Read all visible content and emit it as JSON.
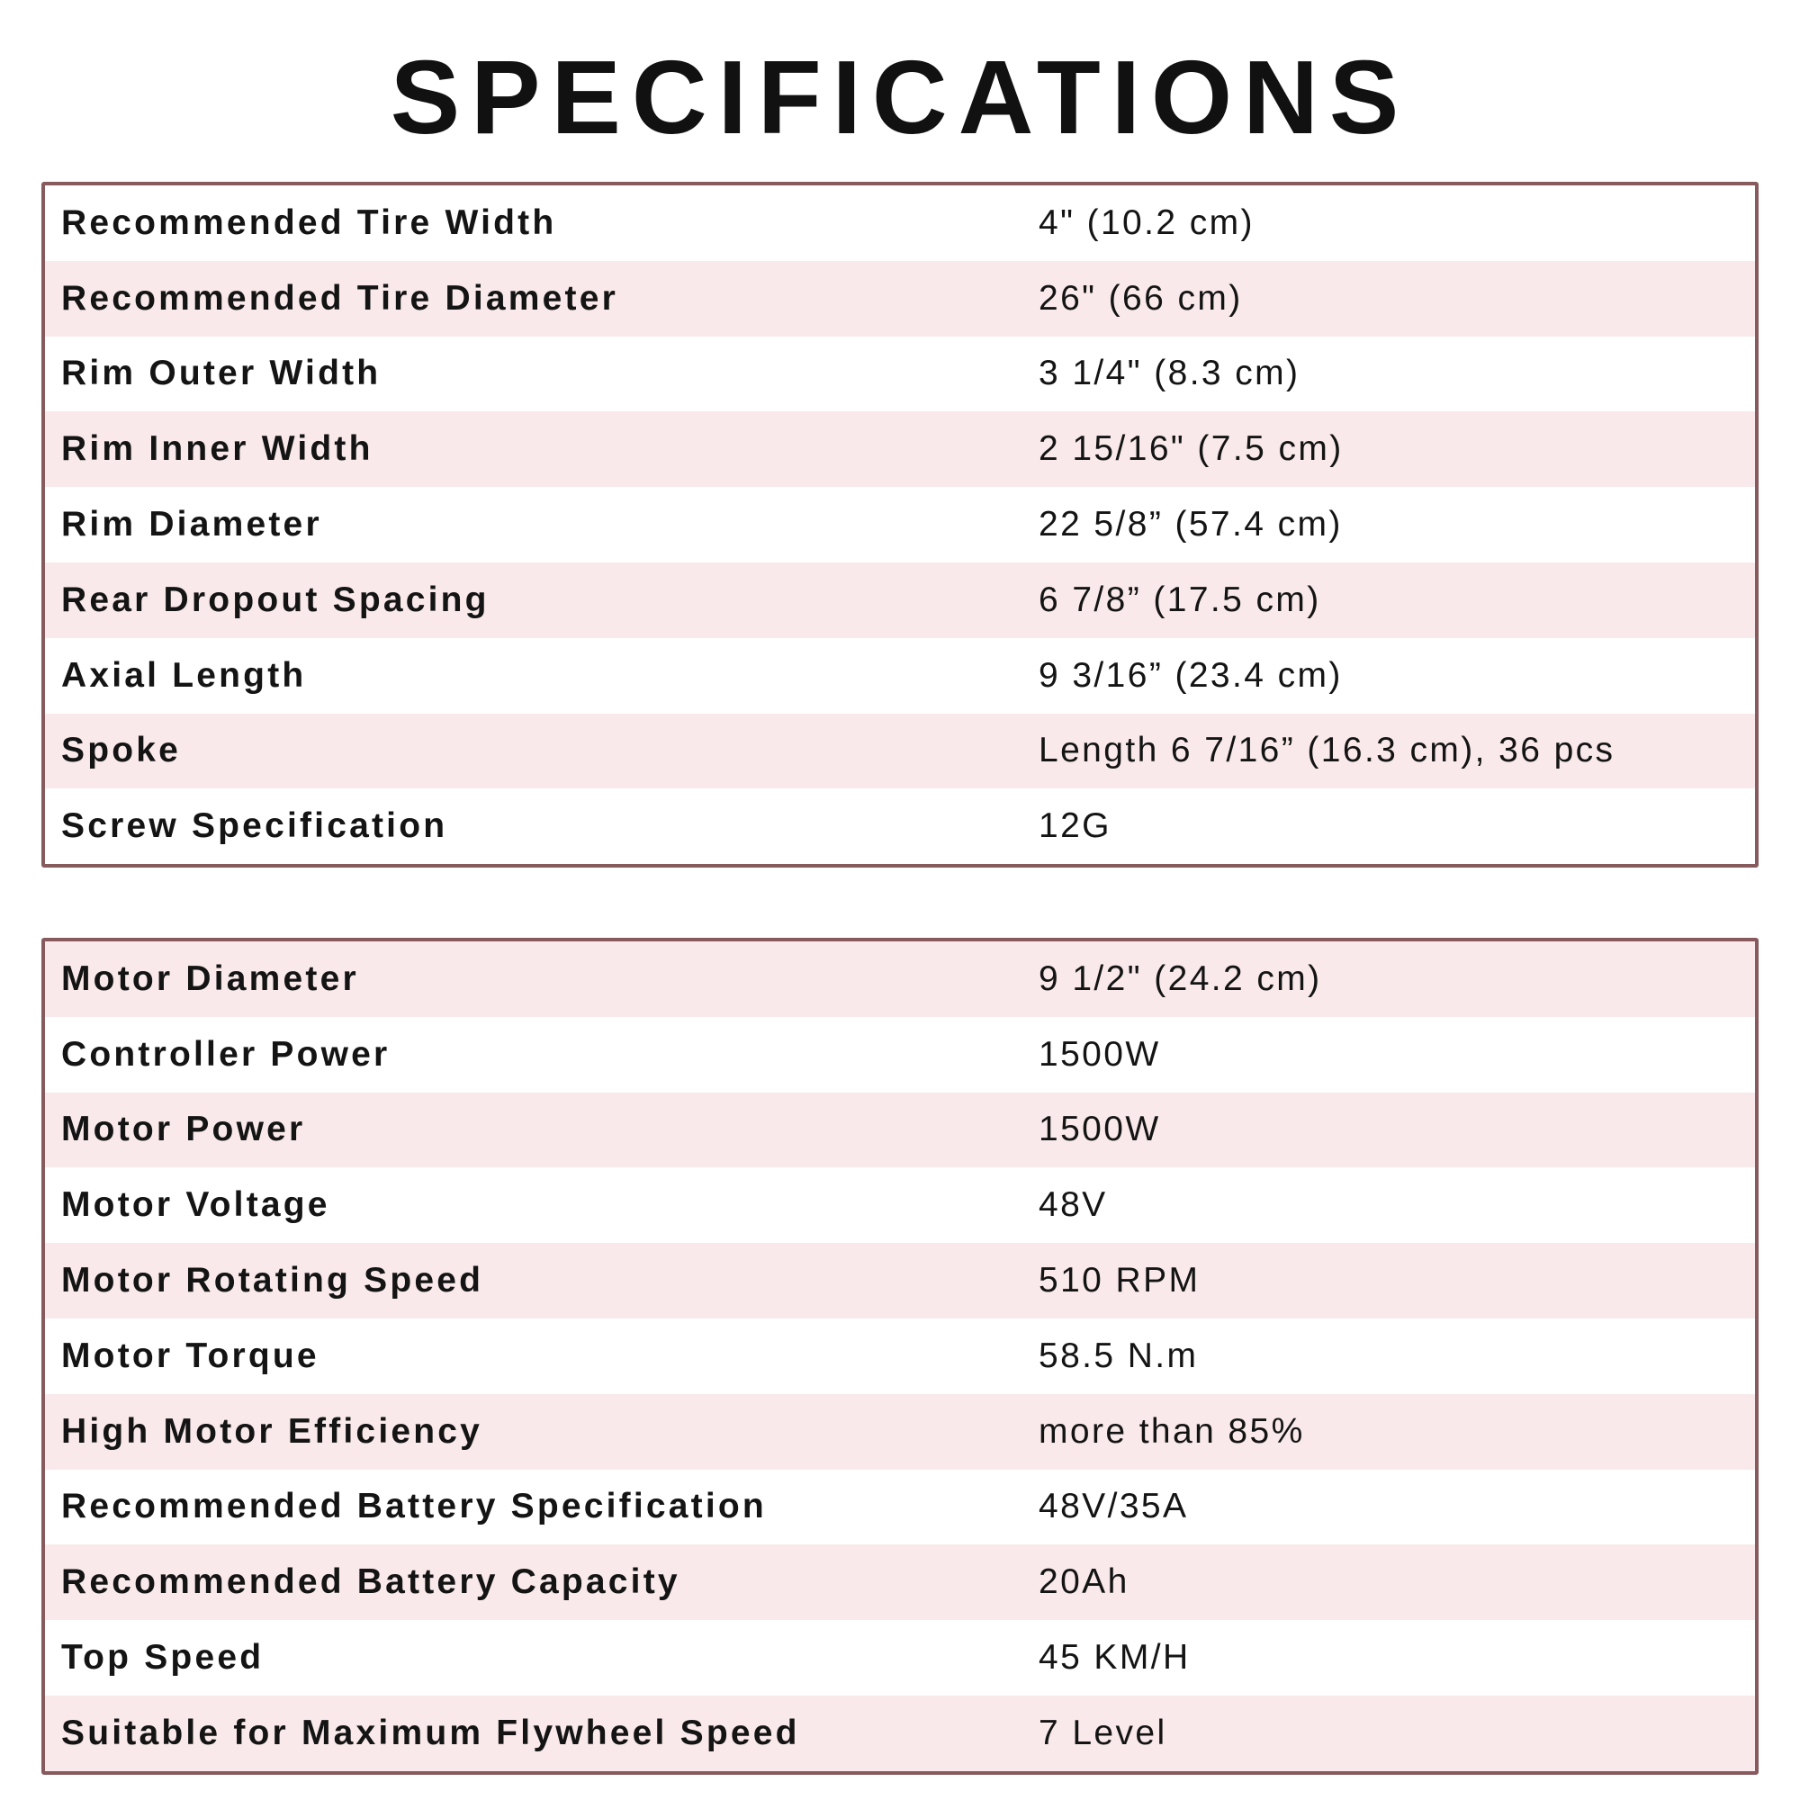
{
  "title": "SPECIFICATIONS",
  "colors": {
    "border": "#875a5d",
    "row_alt": "#f9e9ea",
    "row": "#ffffff"
  },
  "table1": [
    {
      "label": "Recommended Tire Width",
      "value": "4\" (10.2 cm)"
    },
    {
      "label": "Recommended Tire Diameter",
      "value": "26\" (66 cm)"
    },
    {
      "label": "Rim Outer Width",
      "value": "3 1/4\" (8.3 cm)"
    },
    {
      "label": "Rim Inner Width",
      "value": "2 15/16\" (7.5 cm)"
    },
    {
      "label": "Rim Diameter",
      "value": "22 5/8” (57.4 cm)"
    },
    {
      "label": "Rear Dropout Spacing",
      "value": "6 7/8” (17.5 cm)"
    },
    {
      "label": "Axial Length",
      "value": "9 3/16” (23.4 cm)"
    },
    {
      "label": "Spoke",
      "value": "Length 6 7/16” (16.3 cm), 36 pcs"
    },
    {
      "label": "Screw Specification",
      "value": "12G"
    }
  ],
  "table2": [
    {
      "label": "Motor Diameter",
      "value": "9 1/2\" (24.2 cm)"
    },
    {
      "label": "Controller Power",
      "value": "1500W"
    },
    {
      "label": "Motor Power",
      "value": "1500W"
    },
    {
      "label": "Motor Voltage",
      "value": "48V"
    },
    {
      "label": "Motor Rotating Speed",
      "value": "510 RPM"
    },
    {
      "label": "Motor Torque",
      "value": "58.5 N.m"
    },
    {
      "label": "High Motor Efficiency",
      "value": "more than 85%"
    },
    {
      "label": "Recommended Battery Specification",
      "value": "48V/35A"
    },
    {
      "label": "Recommended Battery Capacity",
      "value": "20Ah"
    },
    {
      "label": "Top Speed",
      "value": "45 KM/H"
    },
    {
      "label": "Suitable for Maximum Flywheel Speed",
      "value": "7 Level"
    }
  ]
}
